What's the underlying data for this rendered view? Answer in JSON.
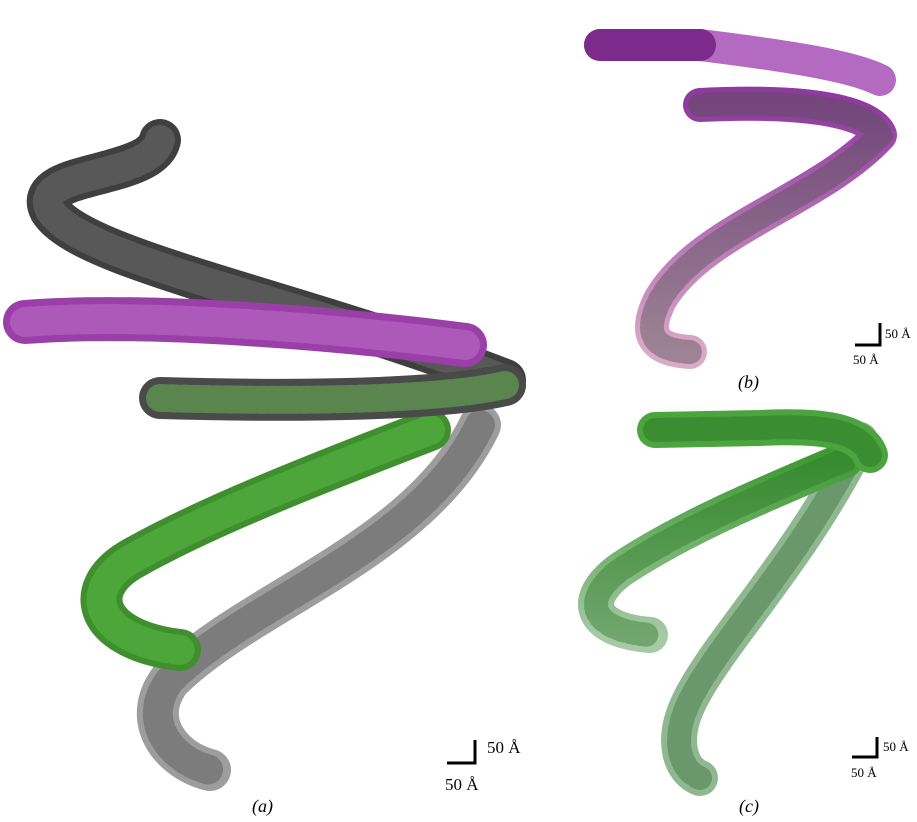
{
  "panels": [
    {
      "label": "(a)",
      "scale_bar": {
        "vertical": "50 Å",
        "horizontal": "50 Å"
      }
    },
    {
      "label": "(b)",
      "scale_bar": {
        "vertical": "50 Å",
        "horizontal": "50 Å"
      }
    },
    {
      "label": "(c)",
      "scale_bar": {
        "vertical": "50 Å",
        "horizontal": "50 Å"
      }
    }
  ]
}
